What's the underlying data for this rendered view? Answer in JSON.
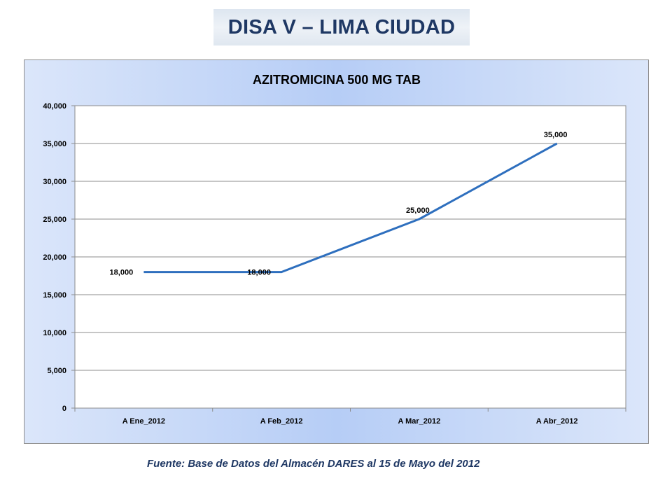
{
  "header": {
    "title": "DISA V – LIMA CIUDAD"
  },
  "chart_data": {
    "type": "line",
    "title": "AZITROMICINA 500 MG TAB",
    "xlabel": "",
    "ylabel": "",
    "categories": [
      "A Ene_2012",
      "A Feb_2012",
      "A Mar_2012",
      "A Abr_2012"
    ],
    "values": [
      18000,
      18000,
      25000,
      35000
    ],
    "data_labels": [
      "18,000",
      "18,000",
      "25,000",
      "35,000"
    ],
    "ylim": [
      0,
      40000
    ],
    "yticks": [
      0,
      5000,
      10000,
      15000,
      20000,
      25000,
      30000,
      35000,
      40000
    ],
    "ytick_labels": [
      "0",
      "5,000",
      "10,000",
      "15,000",
      "20,000",
      "25,000",
      "30,000",
      "35,000",
      "40,000"
    ],
    "grid": true,
    "legend": "none",
    "line_color": "#2e6fbe"
  },
  "footer": {
    "source": "Fuente: Base de Datos del Almacén DARES al 15 de Mayo del 2012"
  }
}
